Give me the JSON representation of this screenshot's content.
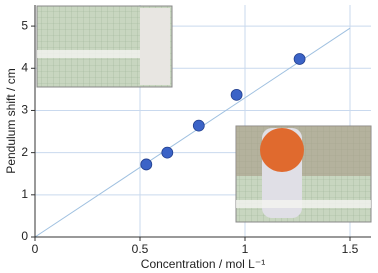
{
  "chart_data": {
    "type": "scatter",
    "x_label": "Concentration  /  mol L⁻¹",
    "y_label": "Pendulum shift  /  cm",
    "xlim": [
      0,
      1.6
    ],
    "ylim": [
      0,
      5.5
    ],
    "xticks": [
      0,
      0.5,
      1,
      1.5
    ],
    "yticks": [
      0,
      1,
      2,
      3,
      4,
      5
    ],
    "grid": true,
    "grid_color": "#c9d9ee",
    "series": [
      {
        "style": "line",
        "color": "#9fc0e0",
        "x": [
          0,
          1.5
        ],
        "values": [
          0,
          4.95
        ]
      },
      {
        "style": "marker",
        "color": "#3b63c7",
        "x": [
          0.53,
          0.63,
          0.78,
          0.96,
          1.26
        ],
        "values": [
          1.72,
          2.0,
          2.64,
          3.37,
          4.22
        ]
      }
    ]
  }
}
